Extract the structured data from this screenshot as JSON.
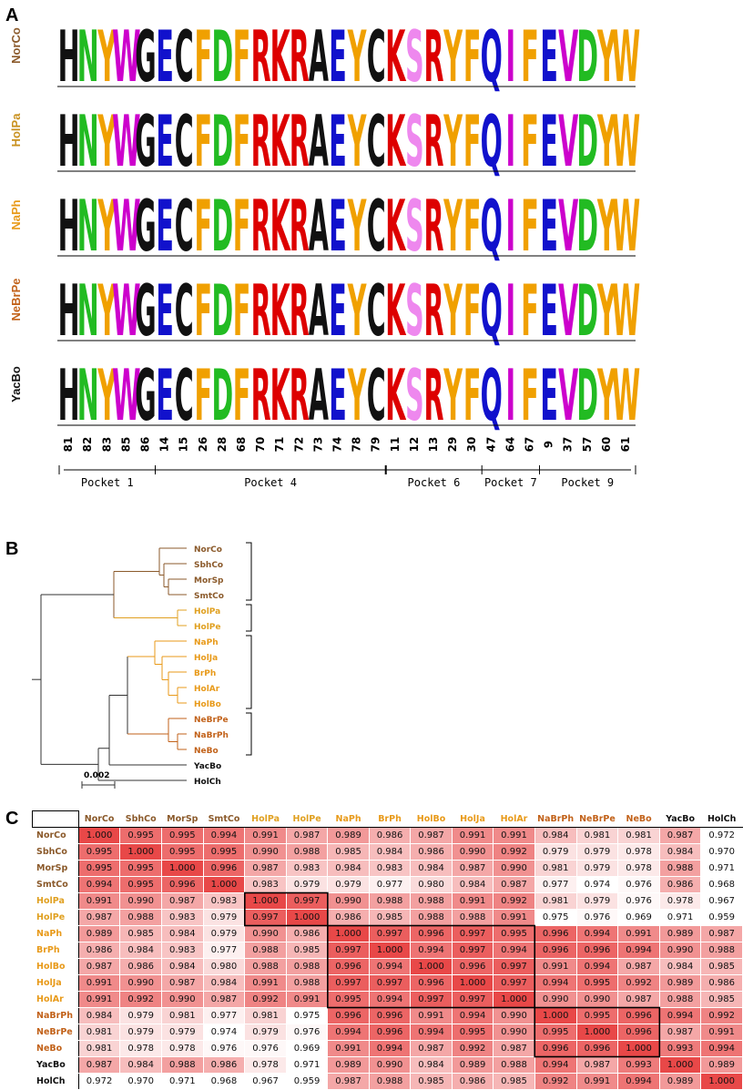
{
  "panels": {
    "a": "A",
    "b": "B",
    "c": "C"
  },
  "logo": {
    "rows": [
      {
        "name": "NorCo",
        "color": "#8b5a2b"
      },
      {
        "name": "HolPa",
        "color": "#c8901e"
      },
      {
        "name": "NaPh",
        "color": "#e89a1a"
      },
      {
        "name": "NeBrPe",
        "color": "#c2621a"
      },
      {
        "name": "YacBo",
        "color": "#111111"
      }
    ],
    "positions": [
      "81",
      "82",
      "83",
      "85",
      "86",
      "14",
      "15",
      "26",
      "28",
      "68",
      "70",
      "71",
      "72",
      "73",
      "74",
      "78",
      "79",
      "11",
      "12",
      "13",
      "29",
      "30",
      "47",
      "64",
      "67",
      "9",
      "37",
      "57",
      "60",
      "61"
    ],
    "pockets": [
      "Pocket 1",
      "Pocket 4",
      "Pocket 6",
      "Pocket 7",
      "Pocket 9"
    ],
    "columns": [
      {
        "aa": "H",
        "color": "#111111"
      },
      {
        "aa": "N",
        "color": "#22bb22"
      },
      {
        "aa": "Y",
        "color": "#f0a000"
      },
      {
        "aa": "W",
        "color": "#cc00cc"
      },
      {
        "aa": "G",
        "color": "#111111"
      },
      {
        "aa": "E",
        "color": "#1111cc"
      },
      {
        "aa": "C",
        "color": "#111111"
      },
      {
        "aa": "F",
        "color": "#f0a000"
      },
      {
        "aa": "D",
        "color": "#22bb22"
      },
      {
        "aa": "F",
        "color": "#f0a000"
      },
      {
        "aa": "R",
        "color": "#dd0000"
      },
      {
        "aa": "K",
        "color": "#dd0000"
      },
      {
        "aa": "R",
        "color": "#dd0000"
      },
      {
        "aa": "A",
        "color": "#111111"
      },
      {
        "aa": "E",
        "color": "#1111cc"
      },
      {
        "aa": "Y",
        "color": "#f0a000"
      },
      {
        "aa": "C",
        "color": "#111111"
      },
      {
        "aa": "K",
        "color": "#dd0000"
      },
      {
        "aa": "S",
        "color": "#ee88ee"
      },
      {
        "aa": "R",
        "color": "#dd0000"
      },
      {
        "aa": "Y",
        "color": "#f0a000"
      },
      {
        "aa": "F",
        "color": "#f0a000"
      },
      {
        "aa": "Q",
        "color": "#1111cc"
      },
      {
        "aa": "I",
        "color": "#cc00cc"
      },
      {
        "aa": "F",
        "color": "#f0a000"
      },
      {
        "aa": "E",
        "color": "#1111cc"
      },
      {
        "aa": "V",
        "color": "#cc00cc"
      },
      {
        "aa": "D",
        "color": "#22bb22"
      },
      {
        "aa": "Y",
        "color": "#f0a000"
      },
      {
        "aa": "W",
        "color": "#f0a000"
      }
    ]
  },
  "tree": {
    "taxa": [
      {
        "name": "NorCo",
        "color": "#8b5a2b"
      },
      {
        "name": "SbhCo",
        "color": "#8b5a2b"
      },
      {
        "name": "MorSp",
        "color": "#8b5a2b"
      },
      {
        "name": "SmtCo",
        "color": "#8b5a2b"
      },
      {
        "name": "HolPa",
        "color": "#e0a020"
      },
      {
        "name": "HolPe",
        "color": "#e0a020"
      },
      {
        "name": "NaPh",
        "color": "#e89a1a"
      },
      {
        "name": "HolJa",
        "color": "#e89a1a"
      },
      {
        "name": "BrPh",
        "color": "#e89a1a"
      },
      {
        "name": "HolAr",
        "color": "#e89a1a"
      },
      {
        "name": "HolBo",
        "color": "#e89a1a"
      },
      {
        "name": "NeBrPe",
        "color": "#c2621a"
      },
      {
        "name": "NaBrPh",
        "color": "#c2621a"
      },
      {
        "name": "NeBo",
        "color": "#c2621a"
      },
      {
        "name": "YacBo",
        "color": "#111111"
      },
      {
        "name": "HolCh",
        "color": "#111111"
      }
    ],
    "scale_label": "0.002"
  },
  "matrix": {
    "labels": [
      "NorCo",
      "SbhCo",
      "MorSp",
      "SmtCo",
      "HolPa",
      "HolPe",
      "NaPh",
      "BrPh",
      "HolBo",
      "HolJa",
      "HolAr",
      "NaBrPh",
      "NeBrPe",
      "NeBo",
      "YacBo",
      "HolCh"
    ],
    "label_colors": [
      "#8b5a2b",
      "#8b5a2b",
      "#8b5a2b",
      "#8b5a2b",
      "#e0a020",
      "#e0a020",
      "#e89a1a",
      "#e89a1a",
      "#e89a1a",
      "#e89a1a",
      "#e89a1a",
      "#c2621a",
      "#c2621a",
      "#c2621a",
      "#111111",
      "#111111"
    ],
    "values": [
      [
        "1.000",
        "0.995",
        "0.995",
        "0.994",
        "0.991",
        "0.987",
        "0.989",
        "0.986",
        "0.987",
        "0.991",
        "0.991",
        "0.984",
        "0.981",
        "0.981",
        "0.987",
        "0.972"
      ],
      [
        "0.995",
        "1.000",
        "0.995",
        "0.995",
        "0.990",
        "0.988",
        "0.985",
        "0.984",
        "0.986",
        "0.990",
        "0.992",
        "0.979",
        "0.979",
        "0.978",
        "0.984",
        "0.970"
      ],
      [
        "0.995",
        "0.995",
        "1.000",
        "0.996",
        "0.987",
        "0.983",
        "0.984",
        "0.983",
        "0.984",
        "0.987",
        "0.990",
        "0.981",
        "0.979",
        "0.978",
        "0.988",
        "0.971"
      ],
      [
        "0.994",
        "0.995",
        "0.996",
        "1.000",
        "0.983",
        "0.979",
        "0.979",
        "0.977",
        "0.980",
        "0.984",
        "0.987",
        "0.977",
        "0.974",
        "0.976",
        "0.986",
        "0.968"
      ],
      [
        "0.991",
        "0.990",
        "0.987",
        "0.983",
        "1.000",
        "0.997",
        "0.990",
        "0.988",
        "0.988",
        "0.991",
        "0.992",
        "0.981",
        "0.979",
        "0.976",
        "0.978",
        "0.967"
      ],
      [
        "0.987",
        "0.988",
        "0.983",
        "0.979",
        "0.997",
        "1.000",
        "0.986",
        "0.985",
        "0.988",
        "0.988",
        "0.991",
        "0.975",
        "0.976",
        "0.969",
        "0.971",
        "0.959"
      ],
      [
        "0.989",
        "0.985",
        "0.984",
        "0.979",
        "0.990",
        "0.986",
        "1.000",
        "0.997",
        "0.996",
        "0.997",
        "0.995",
        "0.996",
        "0.994",
        "0.991",
        "0.989",
        "0.987"
      ],
      [
        "0.986",
        "0.984",
        "0.983",
        "0.977",
        "0.988",
        "0.985",
        "0.997",
        "1.000",
        "0.994",
        "0.997",
        "0.994",
        "0.996",
        "0.996",
        "0.994",
        "0.990",
        "0.988"
      ],
      [
        "0.987",
        "0.986",
        "0.984",
        "0.980",
        "0.988",
        "0.988",
        "0.996",
        "0.994",
        "1.000",
        "0.996",
        "0.997",
        "0.991",
        "0.994",
        "0.987",
        "0.984",
        "0.985"
      ],
      [
        "0.991",
        "0.990",
        "0.987",
        "0.984",
        "0.991",
        "0.988",
        "0.997",
        "0.997",
        "0.996",
        "1.000",
        "0.997",
        "0.994",
        "0.995",
        "0.992",
        "0.989",
        "0.986"
      ],
      [
        "0.991",
        "0.992",
        "0.990",
        "0.987",
        "0.992",
        "0.991",
        "0.995",
        "0.994",
        "0.997",
        "0.997",
        "1.000",
        "0.990",
        "0.990",
        "0.987",
        "0.988",
        "0.985"
      ],
      [
        "0.984",
        "0.979",
        "0.981",
        "0.977",
        "0.981",
        "0.975",
        "0.996",
        "0.996",
        "0.991",
        "0.994",
        "0.990",
        "1.000",
        "0.995",
        "0.996",
        "0.994",
        "0.992"
      ],
      [
        "0.981",
        "0.979",
        "0.979",
        "0.974",
        "0.979",
        "0.976",
        "0.994",
        "0.996",
        "0.994",
        "0.995",
        "0.990",
        "0.995",
        "1.000",
        "0.996",
        "0.987",
        "0.991"
      ],
      [
        "0.981",
        "0.978",
        "0.978",
        "0.976",
        "0.976",
        "0.969",
        "0.991",
        "0.994",
        "0.987",
        "0.992",
        "0.987",
        "0.996",
        "0.996",
        "1.000",
        "0.993",
        "0.994"
      ],
      [
        "0.987",
        "0.984",
        "0.988",
        "0.986",
        "0.978",
        "0.971",
        "0.989",
        "0.990",
        "0.984",
        "0.989",
        "0.988",
        "0.994",
        "0.987",
        "0.993",
        "1.000",
        "0.989"
      ],
      [
        "0.972",
        "0.970",
        "0.971",
        "0.968",
        "0.967",
        "0.959",
        "0.987",
        "0.988",
        "0.985",
        "0.986",
        "0.985",
        "0.992",
        "0.991",
        "0.994",
        "0.989",
        "1.000"
      ]
    ]
  }
}
